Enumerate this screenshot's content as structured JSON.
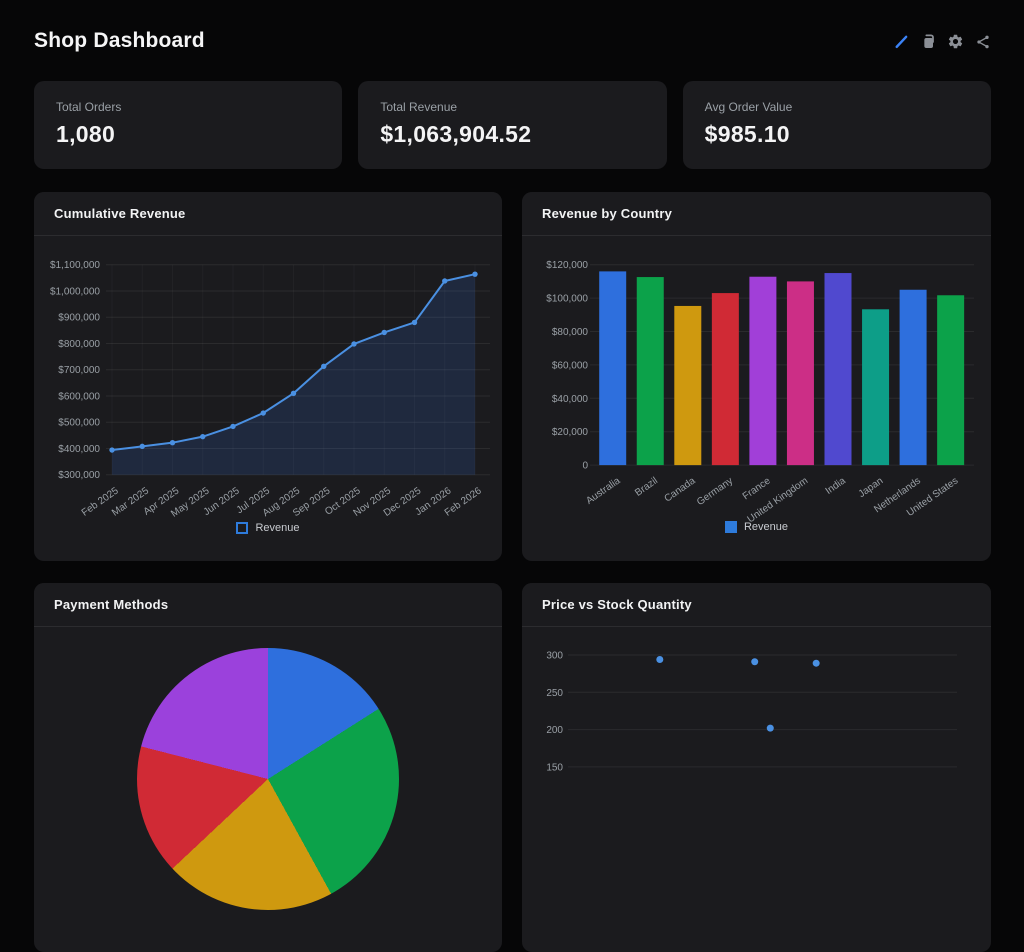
{
  "header": {
    "title": "Shop Dashboard",
    "actions": [
      {
        "icon": "pencil-icon",
        "color": "#3b82f6"
      },
      {
        "icon": "duplicate-pages-icon",
        "color": "#8b8f96"
      },
      {
        "icon": "gear-icon",
        "color": "#8b8f96"
      },
      {
        "icon": "share-icon",
        "color": "#8b8f96"
      }
    ]
  },
  "stats": [
    {
      "label": "Total Orders",
      "value": "1,080"
    },
    {
      "label": "Total Revenue",
      "value": "$1,063,904.52"
    },
    {
      "label": "Avg Order Value",
      "value": "$985.10"
    }
  ],
  "colors": {
    "card_bg": "#1b1b1e",
    "page_bg": "#060607",
    "accent_blue": "#2e7bdb",
    "line_blue": "#4a90e2",
    "muted_text": "#9aa0a6"
  },
  "chart_data": [
    {
      "type": "line",
      "title": "Cumulative Revenue",
      "legend": "Revenue",
      "x_labels": [
        "Feb 2025",
        "Mar 2025",
        "Apr 2025",
        "May 2025",
        "Jun 2025",
        "Jul 2025",
        "Aug 2025",
        "Sep 2025",
        "Oct 2025",
        "Nov 2025",
        "Dec 2025",
        "Jan 2026",
        "Feb 2026"
      ],
      "values": [
        394000,
        408000,
        422000,
        445000,
        484000,
        535000,
        610000,
        713000,
        798000,
        842000,
        880000,
        1038000,
        1063905
      ],
      "y_ticks": [
        "$1,100,000",
        "$1,000,000",
        "$900,000",
        "$800,000",
        "$700,000",
        "$600,000",
        "$500,000",
        "$400,000",
        "$300,000"
      ],
      "y_max": 1100000,
      "y_min": 300000,
      "line_color": "#4a90e2",
      "fill_color": "rgba(59,130,246,0.15)",
      "legend_color": "#2e7bdb",
      "legend_swatch": "outlined",
      "grid": true,
      "legend_position": "bottom"
    },
    {
      "type": "bar",
      "title": "Revenue by Country",
      "legend": "Revenue",
      "categories": [
        "Australia",
        "Brazil",
        "Canada",
        "Germany",
        "France",
        "United Kingdom",
        "India",
        "Japan",
        "Netherlands",
        "United States"
      ],
      "values": [
        116000,
        112600,
        95300,
        103000,
        112800,
        110000,
        115000,
        93300,
        105000,
        101700
      ],
      "bar_colors": [
        "#2e6fdd",
        "#0ca24a",
        "#cf990f",
        "#d02a35",
        "#a13fd8",
        "#cc2e86",
        "#5049cf",
        "#0d9e88",
        "#2e6fdd",
        "#0ca24a"
      ],
      "y_ticks": [
        "$120,000",
        "$100,000",
        "$80,000",
        "$60,000",
        "$40,000",
        "$20,000",
        "0"
      ],
      "y_max": 120000,
      "y_min": 0,
      "legend_color": "#2e7bdb",
      "legend_swatch": "filled",
      "grid": true,
      "legend_position": "bottom"
    },
    {
      "type": "pie",
      "title": "Payment Methods",
      "slices": [
        {
          "color": "#2e6fdd",
          "percent": 16
        },
        {
          "color": "#0ca24a",
          "percent": 26
        },
        {
          "color": "#cf990f",
          "percent": 21
        },
        {
          "color": "#d02a35",
          "percent": 16
        },
        {
          "color": "#9b41dc",
          "percent": 21
        }
      ],
      "start_angle_deg": 0
    },
    {
      "type": "scatter",
      "title": "Price vs Stock Quantity",
      "y_ticks": [
        "300",
        "250",
        "200",
        "150"
      ],
      "y_top": 300,
      "y_step": 50,
      "points": [
        {
          "x_frac": 0.236,
          "y": 294
        },
        {
          "x_frac": 0.48,
          "y": 291
        },
        {
          "x_frac": 0.638,
          "y": 289
        },
        {
          "x_frac": 0.52,
          "y": 202
        }
      ],
      "point_color": "#4a90e2",
      "grid": true
    }
  ]
}
